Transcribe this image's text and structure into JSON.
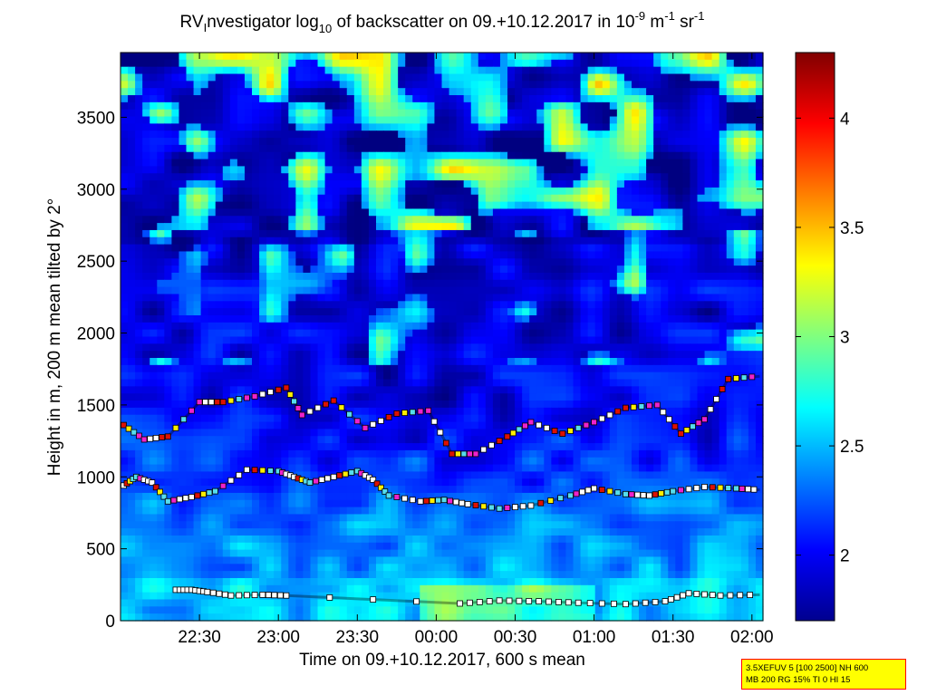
{
  "chart_data": {
    "type": "heatmap",
    "title": {
      "prefix": "RV",
      "prefix_sub": "I",
      "part1": "nvestigator log",
      "part1_sub": "10",
      "part2": " of backscatter on 09.+10.12.2017 in 10",
      "exp1": "-9",
      "part3": " m",
      "exp2": "-1",
      "part4": " sr",
      "exp3": "-1"
    },
    "xlabel": "Time on 09.+10.12.2017, 600 s mean",
    "ylabel": "Height in m, 200 m mean tilted by 2°",
    "x_ticks": [
      "22:30",
      "23:00",
      "23:30",
      "00:00",
      "00:30",
      "01:00",
      "01:30",
      "02:00"
    ],
    "x_range_hours": [
      22.0,
      26.07
    ],
    "x_tick_hours": [
      22.5,
      23.0,
      23.5,
      24.0,
      24.5,
      25.0,
      25.5,
      26.0
    ],
    "y_ticks": [
      "0",
      "500",
      "1000",
      "1500",
      "2000",
      "2500",
      "3000",
      "3500"
    ],
    "y_tick_values": [
      0,
      500,
      1000,
      1500,
      2000,
      2500,
      3000,
      3500
    ],
    "ylim": [
      0,
      3950
    ],
    "colorbar": {
      "ticks": [
        "2",
        "2.5",
        "3",
        "3.5",
        "4"
      ],
      "tick_values": [
        2,
        2.5,
        3,
        3.5,
        4
      ],
      "range": [
        1.7,
        4.3
      ],
      "colormap": "jet"
    },
    "grid": false,
    "layers": [
      {
        "name": "surface layer",
        "points": [
          [
            22.35,
            215
          ],
          [
            22.45,
            215
          ],
          [
            22.55,
            200
          ],
          [
            22.7,
            175
          ],
          [
            22.9,
            180
          ],
          [
            23.05,
            175
          ],
          [
            24.15,
            120
          ],
          [
            24.4,
            140
          ],
          [
            24.65,
            135
          ],
          [
            24.9,
            125
          ],
          [
            25.2,
            115
          ],
          [
            25.45,
            135
          ],
          [
            25.6,
            190
          ],
          [
            25.8,
            175
          ],
          [
            26.05,
            180
          ]
        ]
      },
      {
        "name": "mid layer",
        "points": [
          [
            22.02,
            940
          ],
          [
            22.1,
            1000
          ],
          [
            22.2,
            960
          ],
          [
            22.3,
            830
          ],
          [
            22.45,
            860
          ],
          [
            22.6,
            900
          ],
          [
            22.8,
            1050
          ],
          [
            23.0,
            1040
          ],
          [
            23.1,
            1000
          ],
          [
            23.2,
            960
          ],
          [
            23.35,
            1000
          ],
          [
            23.5,
            1040
          ],
          [
            23.6,
            980
          ],
          [
            23.7,
            870
          ],
          [
            23.9,
            830
          ],
          [
            24.05,
            840
          ],
          [
            24.2,
            810
          ],
          [
            24.4,
            780
          ],
          [
            24.6,
            800
          ],
          [
            24.85,
            870
          ],
          [
            25.0,
            920
          ],
          [
            25.2,
            880
          ],
          [
            25.35,
            870
          ],
          [
            25.5,
            900
          ],
          [
            25.7,
            930
          ],
          [
            25.9,
            920
          ],
          [
            26.05,
            910
          ]
        ]
      },
      {
        "name": "upper layer",
        "points": [
          [
            22.02,
            1360
          ],
          [
            22.15,
            1260
          ],
          [
            22.3,
            1280
          ],
          [
            22.5,
            1520
          ],
          [
            22.65,
            1520
          ],
          [
            22.85,
            1560
          ],
          [
            23.05,
            1620
          ],
          [
            23.15,
            1430
          ],
          [
            23.35,
            1530
          ],
          [
            23.55,
            1340
          ],
          [
            23.75,
            1440
          ],
          [
            23.95,
            1460
          ],
          [
            24.1,
            1160
          ],
          [
            24.25,
            1160
          ],
          [
            24.45,
            1280
          ],
          [
            24.6,
            1380
          ],
          [
            24.8,
            1300
          ],
          [
            25.0,
            1380
          ],
          [
            25.2,
            1480
          ],
          [
            25.4,
            1500
          ],
          [
            25.55,
            1300
          ],
          [
            25.7,
            1400
          ],
          [
            25.85,
            1680
          ],
          [
            26.05,
            1700
          ]
        ]
      }
    ],
    "layer_values": [
      2.1,
      2.9,
      3.6,
      4.1
    ],
    "annotation": {
      "line1": "3.5XEFUV 5 [100 2500] NH 600",
      "line2": "MB 200 RG 15% TI 0 HI 15"
    }
  },
  "colors": {
    "marker_white": "#ffffff",
    "marker_red": "#dd1100",
    "marker_yellow": "#ffee00",
    "marker_magenta": "#ee22cc",
    "marker_cyan": "#55ddee",
    "info_bg": "#ffff00",
    "info_border": "#ff0000"
  }
}
